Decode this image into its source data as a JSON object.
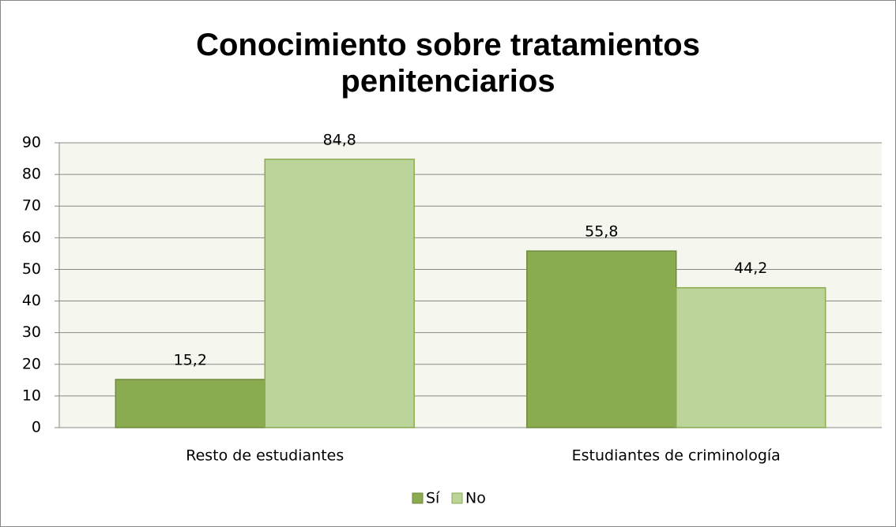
{
  "chart_data": {
    "type": "bar",
    "title": "Conocimiento sobre tratamientos penitenciarios",
    "categories": [
      "Resto de estudiantes",
      "Estudiantes de criminología"
    ],
    "series": [
      {
        "name": "Sí",
        "color": "#8aab4f",
        "values": [
          15.2,
          55.8
        ],
        "value_labels": [
          "15,2",
          "55,8"
        ]
      },
      {
        "name": "No",
        "color": "#bcd39a",
        "values": [
          84.8,
          44.2
        ],
        "value_labels": [
          "84,8",
          "44,2"
        ]
      }
    ],
    "ylim": [
      0,
      90
    ],
    "yticks": [
      0,
      10,
      20,
      30,
      40,
      50,
      60,
      70,
      80,
      90
    ],
    "grid": true,
    "legend": "bottom"
  }
}
